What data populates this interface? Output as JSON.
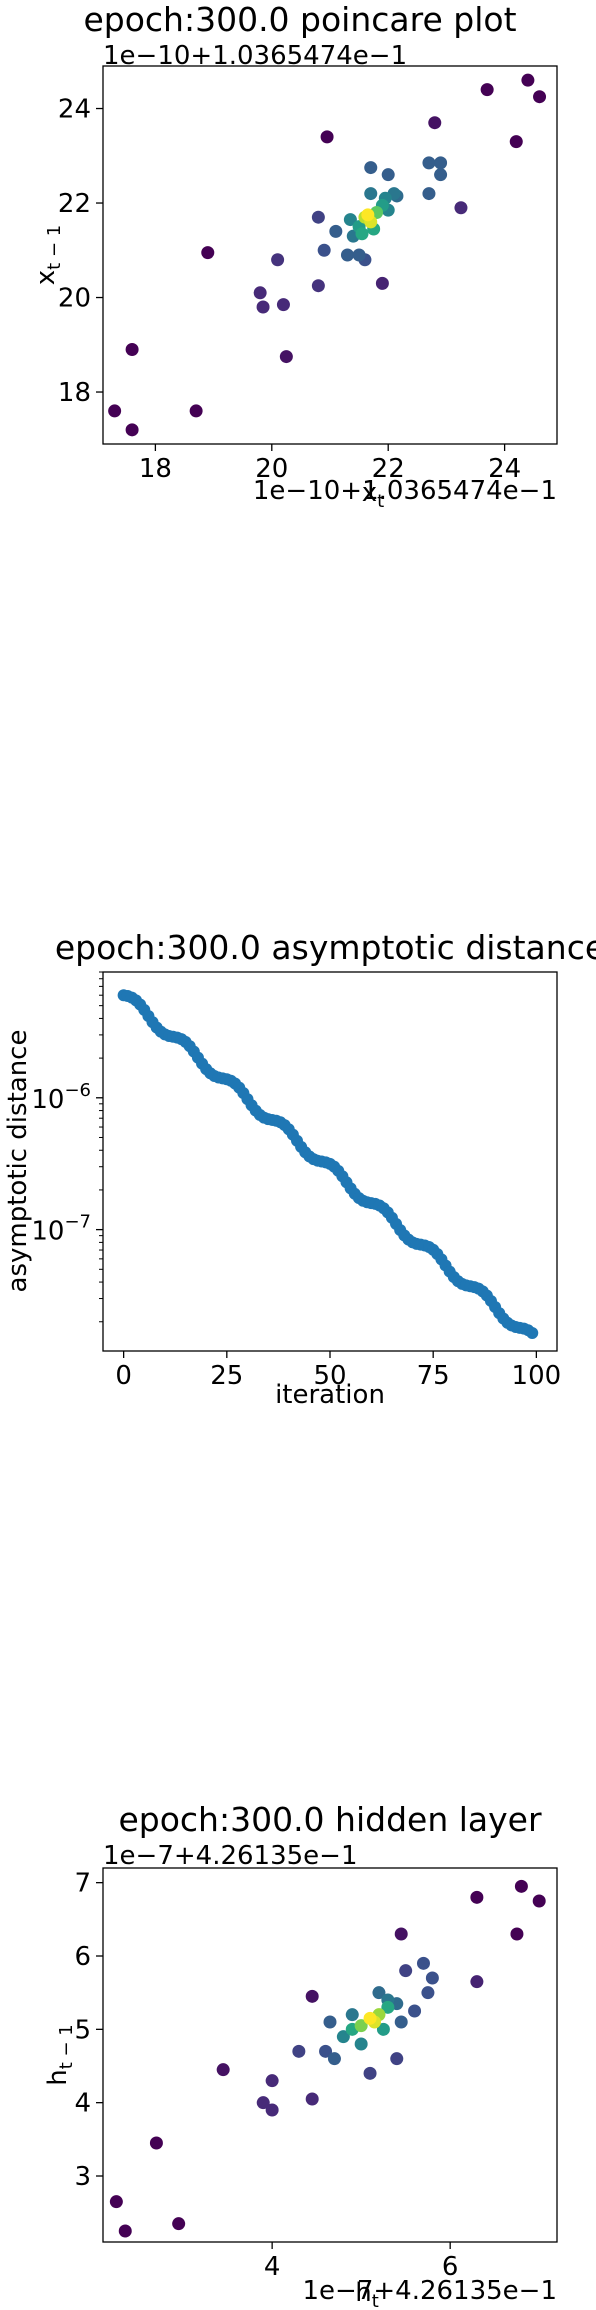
{
  "chart_data": [
    {
      "type": "scatter",
      "title": "epoch:300.0 poincare plot",
      "xlabel": "x_t",
      "ylabel": "x_{t-1}",
      "y_offset_text": "1e−10+1.0365474e−1",
      "x_offset_text": "1e−10+1.0365474e−1",
      "xlim": [
        17.1,
        24.9
      ],
      "ylim": [
        16.9,
        24.9
      ],
      "xticks": [
        18,
        20,
        22,
        24
      ],
      "yticks": [
        18,
        20,
        22,
        24
      ],
      "colormap": "viridis (point density)",
      "points": [
        [
          17.3,
          17.6,
          0.0
        ],
        [
          17.6,
          17.2,
          0.0
        ],
        [
          17.6,
          18.9,
          0.0
        ],
        [
          18.7,
          17.6,
          0.0
        ],
        [
          18.9,
          20.95,
          0.0
        ],
        [
          19.8,
          20.1,
          0.12
        ],
        [
          19.85,
          19.8,
          0.12
        ],
        [
          20.2,
          19.85,
          0.12
        ],
        [
          20.25,
          18.75,
          0.05
        ],
        [
          20.1,
          20.8,
          0.15
        ],
        [
          20.95,
          23.4,
          0.0
        ],
        [
          20.8,
          20.25,
          0.15
        ],
        [
          20.8,
          21.7,
          0.2
        ],
        [
          20.9,
          21.0,
          0.25
        ],
        [
          21.1,
          21.4,
          0.3
        ],
        [
          21.3,
          20.9,
          0.3
        ],
        [
          21.4,
          21.3,
          0.4
        ],
        [
          21.5,
          21.5,
          0.55
        ],
        [
          21.55,
          21.35,
          0.6
        ],
        [
          21.6,
          21.7,
          0.9
        ],
        [
          21.7,
          21.6,
          0.95
        ],
        [
          21.65,
          21.75,
          1.0
        ],
        [
          21.8,
          21.8,
          0.75
        ],
        [
          21.9,
          21.95,
          0.55
        ],
        [
          21.75,
          21.45,
          0.6
        ],
        [
          21.35,
          21.65,
          0.45
        ],
        [
          21.7,
          22.2,
          0.4
        ],
        [
          22.0,
          21.85,
          0.45
        ],
        [
          22.1,
          22.2,
          0.4
        ],
        [
          21.95,
          22.1,
          0.45
        ],
        [
          21.7,
          22.75,
          0.3
        ],
        [
          22.0,
          22.6,
          0.3
        ],
        [
          21.5,
          20.9,
          0.3
        ],
        [
          21.9,
          20.3,
          0.1
        ],
        [
          21.6,
          20.8,
          0.25
        ],
        [
          22.7,
          22.85,
          0.3
        ],
        [
          22.9,
          22.85,
          0.3
        ],
        [
          22.9,
          22.6,
          0.3
        ],
        [
          22.7,
          22.2,
          0.3
        ],
        [
          22.15,
          22.15,
          0.35
        ],
        [
          22.8,
          23.7,
          0.05
        ],
        [
          23.25,
          21.9,
          0.12
        ],
        [
          23.7,
          24.4,
          0.0
        ],
        [
          24.2,
          23.3,
          0.0
        ],
        [
          24.4,
          24.6,
          0.0
        ],
        [
          24.6,
          24.25,
          0.0
        ]
      ]
    },
    {
      "type": "line",
      "marker": "o",
      "title": "epoch:300.0 asymptotic distance",
      "xlabel": "iteration",
      "ylabel": "asymptotic distance",
      "yscale": "log",
      "xlim": [
        -5,
        105
      ],
      "ylim": [
        1.2e-08,
        9e-06
      ],
      "xticks": [
        0,
        25,
        50,
        75,
        100
      ],
      "yticks": [
        {
          "value": 1e-06,
          "label_base": "10",
          "label_exp": "−6"
        },
        {
          "value": 1e-07,
          "label_base": "10",
          "label_exp": "−7"
        }
      ],
      "color": "#1f77b4",
      "series": [
        {
          "name": "asymptotic distance",
          "start": 6e-06,
          "end": 1.5e-08,
          "n": 100,
          "wave_period": 12,
          "wave_amplitude_decades": 0.04
        }
      ]
    },
    {
      "type": "scatter",
      "title": "epoch:300.0 hidden layer",
      "xlabel": "h_t",
      "ylabel": "h_{t-1}",
      "y_offset_text": "1e−7+4.26135e−1",
      "x_offset_text": "1e−7+4.26135e−1",
      "xlim": [
        2.1,
        7.2
      ],
      "ylim": [
        2.1,
        7.2
      ],
      "xticks": [
        4,
        6
      ],
      "yticks": [
        3,
        4,
        5,
        6,
        7
      ],
      "colormap": "viridis (point density)",
      "points": [
        [
          2.25,
          2.65,
          0.0
        ],
        [
          2.35,
          2.25,
          0.0
        ],
        [
          2.7,
          3.45,
          0.0
        ],
        [
          2.95,
          2.35,
          0.0
        ],
        [
          3.45,
          4.45,
          0.05
        ],
        [
          3.9,
          4.0,
          0.12
        ],
        [
          4.0,
          4.3,
          0.12
        ],
        [
          4.0,
          3.9,
          0.12
        ],
        [
          4.3,
          4.7,
          0.2
        ],
        [
          4.45,
          4.05,
          0.12
        ],
        [
          4.45,
          5.45,
          0.05
        ],
        [
          4.6,
          4.7,
          0.25
        ],
        [
          4.7,
          4.6,
          0.3
        ],
        [
          4.65,
          5.1,
          0.3
        ],
        [
          4.8,
          4.9,
          0.45
        ],
        [
          4.9,
          5.0,
          0.6
        ],
        [
          5.0,
          5.05,
          0.8
        ],
        [
          5.1,
          5.15,
          1.0
        ],
        [
          5.15,
          5.1,
          0.95
        ],
        [
          5.2,
          5.2,
          0.85
        ],
        [
          5.3,
          5.3,
          0.6
        ],
        [
          5.25,
          5.0,
          0.55
        ],
        [
          5.0,
          4.8,
          0.45
        ],
        [
          4.9,
          5.2,
          0.4
        ],
        [
          5.1,
          4.4,
          0.2
        ],
        [
          5.2,
          5.5,
          0.35
        ],
        [
          5.3,
          5.4,
          0.4
        ],
        [
          5.4,
          5.35,
          0.35
        ],
        [
          5.45,
          5.1,
          0.3
        ],
        [
          5.4,
          4.6,
          0.2
        ],
        [
          5.5,
          5.8,
          0.2
        ],
        [
          5.7,
          5.9,
          0.25
        ],
        [
          5.8,
          5.7,
          0.25
        ],
        [
          5.6,
          5.25,
          0.25
        ],
        [
          5.75,
          5.5,
          0.25
        ],
        [
          5.45,
          6.3,
          0.05
        ],
        [
          6.3,
          5.65,
          0.1
        ],
        [
          6.3,
          6.8,
          0.0
        ],
        [
          6.75,
          6.3,
          0.0
        ],
        [
          6.8,
          6.95,
          0.0
        ],
        [
          7.0,
          6.75,
          0.0
        ]
      ]
    }
  ]
}
